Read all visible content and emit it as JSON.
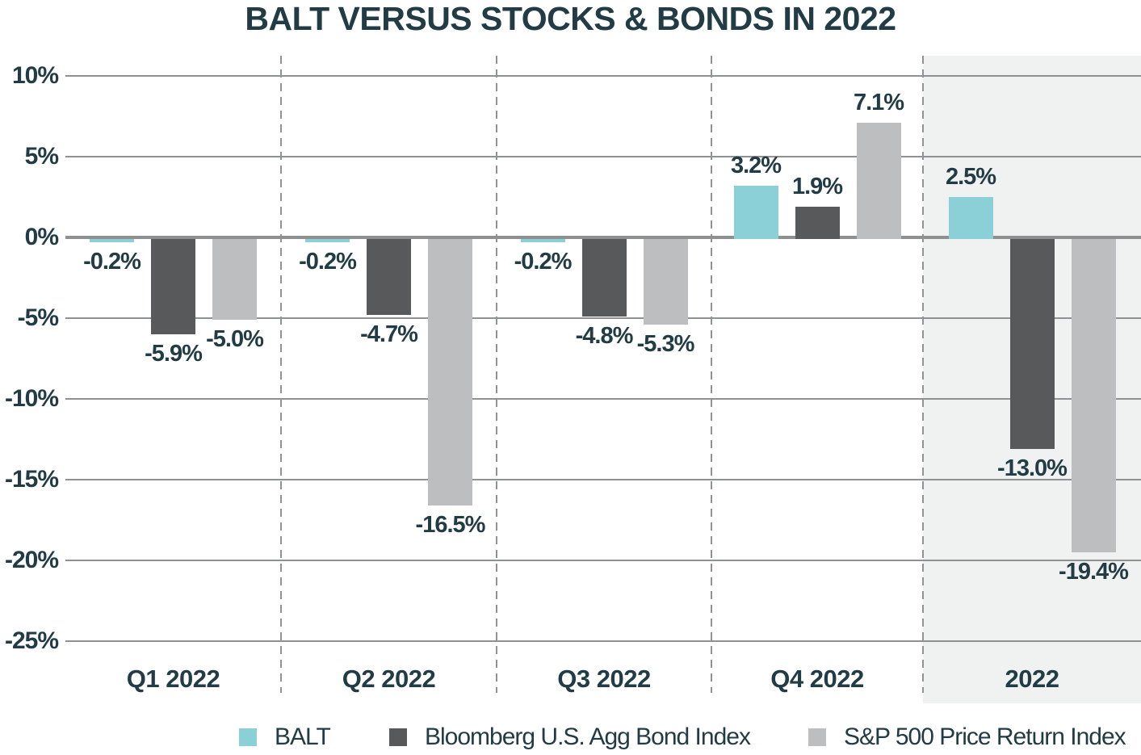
{
  "title": "BALT VERSUS STOCKS & BONDS IN 2022",
  "chart_data": {
    "type": "bar",
    "title": "BALT VERSUS STOCKS & BONDS IN 2022",
    "categories": [
      "Q1 2022",
      "Q2 2022",
      "Q3 2022",
      "Q4 2022",
      "2022"
    ],
    "series": [
      {
        "name": "BALT",
        "color": "#8bcfd7",
        "values": [
          -0.2,
          -0.2,
          -0.2,
          3.2,
          2.5
        ]
      },
      {
        "name": "Bloomberg U.S. Agg Bond Index",
        "color": "#58595b",
        "values": [
          -5.9,
          -4.7,
          -4.8,
          1.9,
          -13.0
        ]
      },
      {
        "name": "S&P 500 Price Return Index",
        "color": "#bcbec0",
        "values": [
          -5.0,
          -16.5,
          -5.3,
          7.1,
          -19.4
        ]
      }
    ],
    "value_labels": [
      [
        "-0.2%",
        "-0.2%",
        "-0.2%",
        "3.2%",
        "2.5%"
      ],
      [
        "-5.9%",
        "-4.7%",
        "-4.8%",
        "1.9%",
        "-13.0%"
      ],
      [
        "-5.0%",
        "-16.5%",
        "-5.3%",
        "7.1%",
        "-19.4%"
      ]
    ],
    "y_axis": {
      "ticks": [
        "10%",
        "5%",
        "0%",
        "-5%",
        "-10%",
        "-15%",
        "-20%",
        "-25%"
      ],
      "tick_values": [
        10,
        5,
        0,
        -5,
        -10,
        -15,
        -20,
        -25
      ],
      "min": -25,
      "max": 10,
      "grid": true
    },
    "highlight": {
      "category": "2022",
      "background": "#f0f1f1"
    },
    "legend": {
      "position": "bottom",
      "entries": [
        "BALT",
        "Bloomberg U.S. Agg Bond Index",
        "S&P 500 Price Return Index"
      ]
    },
    "colors": {
      "text": "#223c46",
      "gridline": "#8f9193",
      "zero_line": "#8d8f91",
      "separator_dash": "#909396",
      "highlight_background": "#f0f1f1"
    }
  }
}
